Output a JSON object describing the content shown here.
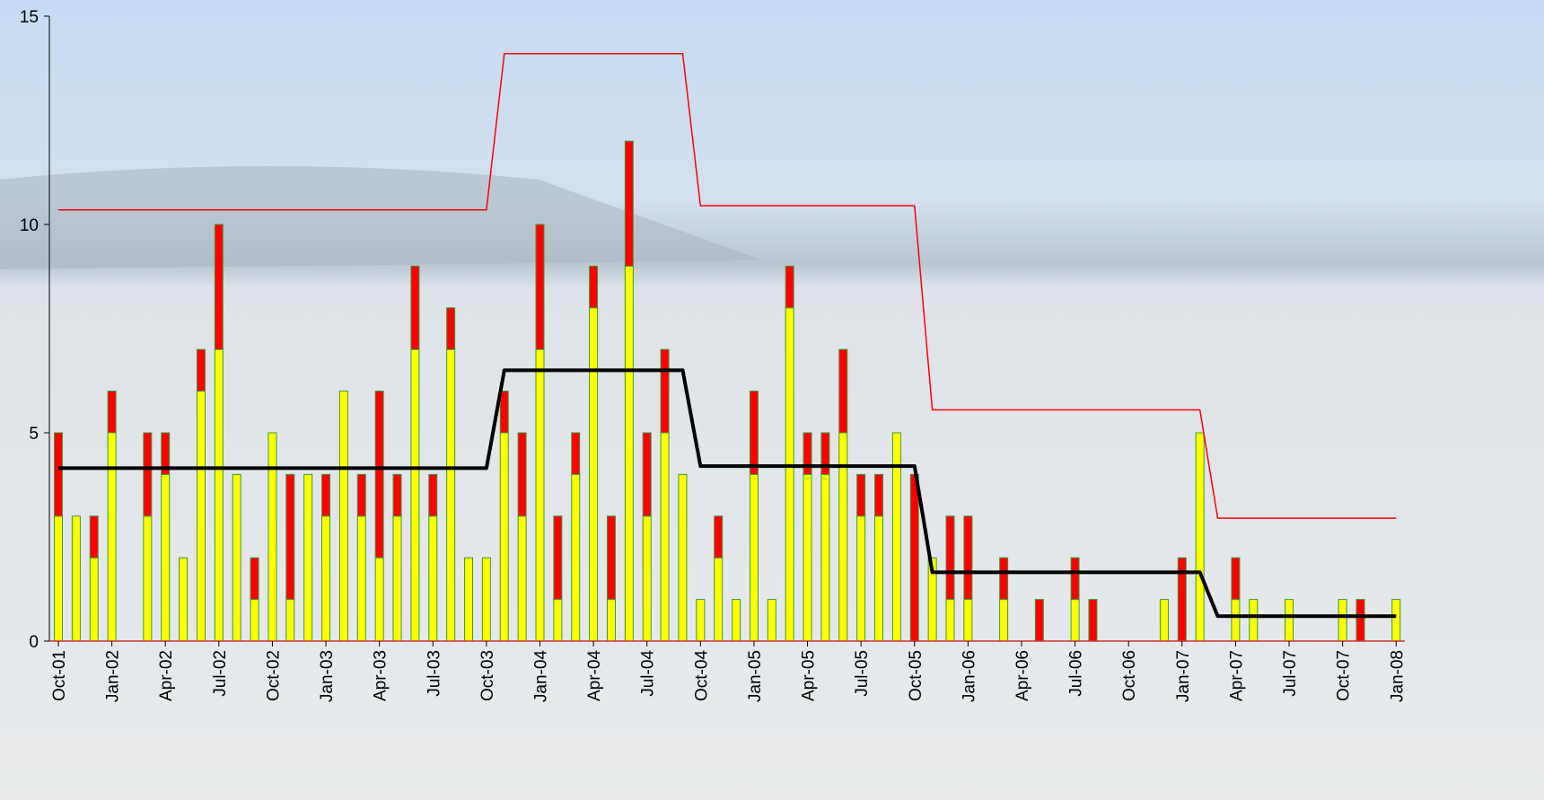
{
  "chart_data": {
    "type": "bar",
    "stacked": true,
    "categories": [
      "Oct-01",
      null,
      null,
      "Jan-02",
      null,
      null,
      "Apr-02",
      null,
      null,
      "Jul-02",
      null,
      null,
      "Oct-02",
      null,
      null,
      "Jan-03",
      null,
      null,
      "Apr-03",
      null,
      null,
      "Jul-03",
      null,
      null,
      "Oct-03",
      null,
      null,
      "Jan-04",
      null,
      null,
      "Apr-04",
      null,
      null,
      "Jul-04",
      null,
      null,
      "Oct-04",
      null,
      null,
      "Jan-05",
      null,
      null,
      "Apr-05",
      null,
      null,
      "Jul-05",
      null,
      null,
      "Oct-05",
      null,
      null,
      "Jan-06",
      null,
      null,
      "Apr-06",
      null,
      null,
      "Jul-06",
      null,
      null,
      "Oct-06",
      null,
      null,
      "Jan-07",
      null,
      null,
      "Apr-07",
      null,
      null,
      "Jul-07",
      null,
      null,
      "Oct-07",
      null,
      null,
      "Jan-08"
    ],
    "series": [
      {
        "color": "#ffff00",
        "values": [
          3,
          3,
          2,
          5,
          0,
          3,
          4,
          2,
          6,
          7,
          4,
          1,
          5,
          1,
          4,
          3,
          6,
          3,
          2,
          3,
          7,
          3,
          7,
          2,
          2,
          5,
          3,
          7,
          1,
          4,
          8,
          1,
          9,
          3,
          5,
          4,
          1,
          2,
          1,
          4,
          1,
          8,
          4,
          4,
          5,
          3,
          3,
          5,
          0,
          2,
          1,
          1,
          0,
          1,
          0,
          0,
          0,
          1,
          0,
          0,
          0,
          0,
          1,
          0,
          5,
          0,
          1,
          1,
          0,
          1,
          0,
          0,
          1,
          0,
          0,
          1
        ]
      },
      {
        "color": "#ff0000",
        "values": [
          2,
          0,
          1,
          1,
          0,
          2,
          1,
          0,
          1,
          3,
          0,
          1,
          0,
          3,
          0,
          1,
          0,
          1,
          4,
          1,
          2,
          1,
          1,
          0,
          0,
          1,
          2,
          3,
          2,
          1,
          1,
          2,
          3,
          2,
          2,
          0,
          0,
          1,
          0,
          2,
          0,
          1,
          1,
          1,
          2,
          1,
          1,
          0,
          4,
          0,
          2,
          2,
          0,
          1,
          0,
          1,
          0,
          1,
          1,
          0,
          0,
          0,
          0,
          2,
          0,
          0,
          1,
          0,
          0,
          0,
          0,
          0,
          0,
          1,
          0,
          0
        ]
      },
      {
        "type": "line",
        "color": "#000000",
        "values": [
          4.15,
          4.15,
          4.15,
          4.15,
          4.15,
          4.15,
          4.15,
          4.15,
          4.15,
          4.15,
          4.15,
          4.15,
          4.15,
          4.15,
          4.15,
          4.15,
          4.15,
          4.15,
          4.15,
          4.15,
          4.15,
          4.15,
          4.15,
          4.15,
          4.15,
          6.5,
          6.5,
          6.5,
          6.5,
          6.5,
          6.5,
          6.5,
          6.5,
          6.5,
          6.5,
          6.5,
          4.2,
          4.2,
          4.2,
          4.2,
          4.2,
          4.2,
          4.2,
          4.2,
          4.2,
          4.2,
          4.2,
          4.2,
          4.2,
          1.65,
          1.65,
          1.65,
          1.65,
          1.65,
          1.65,
          1.65,
          1.65,
          1.65,
          1.65,
          1.65,
          1.65,
          1.65,
          1.65,
          1.65,
          1.65,
          0.6,
          0.6,
          0.6,
          0.6,
          0.6,
          0.6,
          0.6,
          0.6,
          0.6,
          0.6,
          0.6
        ]
      },
      {
        "type": "line",
        "color": "#ff0000",
        "values": [
          10.35,
          10.35,
          10.35,
          10.35,
          10.35,
          10.35,
          10.35,
          10.35,
          10.35,
          10.35,
          10.35,
          10.35,
          10.35,
          10.35,
          10.35,
          10.35,
          10.35,
          10.35,
          10.35,
          10.35,
          10.35,
          10.35,
          10.35,
          10.35,
          10.35,
          14.1,
          14.1,
          14.1,
          14.1,
          14.1,
          14.1,
          14.1,
          14.1,
          14.1,
          14.1,
          14.1,
          10.45,
          10.45,
          10.45,
          10.45,
          10.45,
          10.45,
          10.45,
          10.45,
          10.45,
          10.45,
          10.45,
          10.45,
          10.45,
          5.55,
          5.55,
          5.55,
          5.55,
          5.55,
          5.55,
          5.55,
          5.55,
          5.55,
          5.55,
          5.55,
          5.55,
          5.55,
          5.55,
          5.55,
          5.55,
          2.95,
          2.95,
          2.95,
          2.95,
          2.95,
          2.95,
          2.95,
          2.95,
          2.95,
          2.95,
          2.95
        ]
      }
    ],
    "ylim": [
      0,
      15
    ],
    "yticks": [
      0,
      5,
      10,
      15
    ]
  }
}
